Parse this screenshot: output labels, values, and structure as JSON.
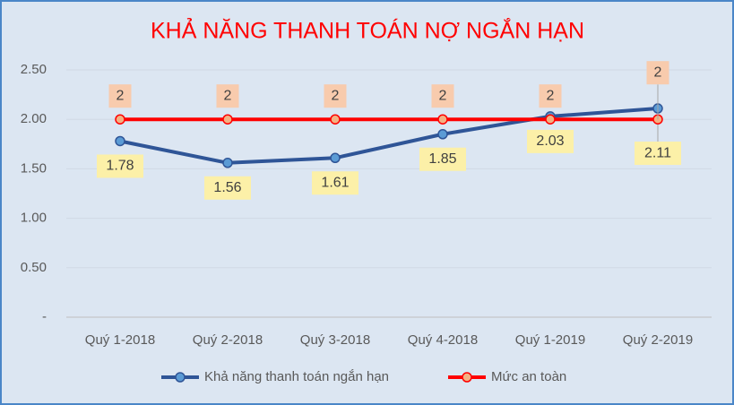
{
  "chart_data": {
    "type": "line",
    "title": "KHẢ NĂNG THANH TOÁN NỢ NGẮN HẠN",
    "categories": [
      "Quý 1-2018",
      "Quý 2-2018",
      "Quý 3-2018",
      "Quý 4-2018",
      "Quý 1-2019",
      "Quý 2-2019"
    ],
    "series": [
      {
        "name": "Khả năng thanh toán ngắn hạn",
        "color": "#2f5597",
        "values": [
          1.78,
          1.56,
          1.61,
          1.85,
          2.03,
          2.11
        ]
      },
      {
        "name": "Mức an toàn",
        "color": "#ff0000",
        "values": [
          2,
          2,
          2,
          2,
          2,
          2
        ]
      }
    ],
    "ylim": [
      0,
      2.5
    ],
    "yticks": [
      {
        "value": 0,
        "label": "-"
      },
      {
        "value": 0.5,
        "label": "0.50"
      },
      {
        "value": 1,
        "label": "1.00"
      },
      {
        "value": 1.5,
        "label": "1.50"
      },
      {
        "value": 2,
        "label": "2.00"
      },
      {
        "value": 2.5,
        "label": "2.50"
      }
    ],
    "grid": true,
    "legend": "bottom"
  }
}
